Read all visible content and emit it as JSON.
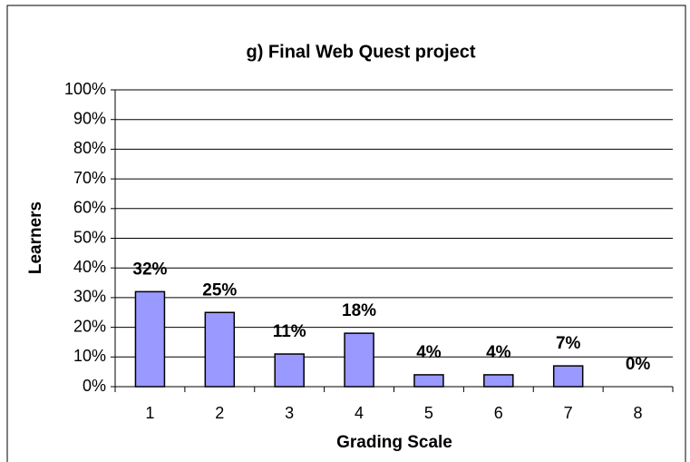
{
  "chart_data": {
    "type": "bar",
    "title": "g)  Final Web Quest project",
    "x_label": "Grading Scale",
    "y_label": "Learners",
    "categories": [
      "1",
      "2",
      "3",
      "4",
      "5",
      "6",
      "7",
      "8"
    ],
    "values": [
      32,
      25,
      11,
      18,
      4,
      4,
      7,
      0
    ],
    "value_labels": [
      "32%",
      "25%",
      "11%",
      "18%",
      "4%",
      "4%",
      "7%",
      "0%"
    ],
    "color": "#9999ff",
    "ylim": [
      0,
      100
    ],
    "yticks": [
      {
        "value": 0,
        "label": "0%"
      },
      {
        "value": 10,
        "label": "10%"
      },
      {
        "value": 20,
        "label": "20%"
      },
      {
        "value": 30,
        "label": "30%"
      },
      {
        "value": 40,
        "label": "40%"
      },
      {
        "value": 50,
        "label": "50%"
      },
      {
        "value": 60,
        "label": "60%"
      },
      {
        "value": 70,
        "label": "70%"
      },
      {
        "value": 80,
        "label": "80%"
      },
      {
        "value": 90,
        "label": "90%"
      },
      {
        "value": 100,
        "label": "100%"
      }
    ],
    "grid": true
  }
}
